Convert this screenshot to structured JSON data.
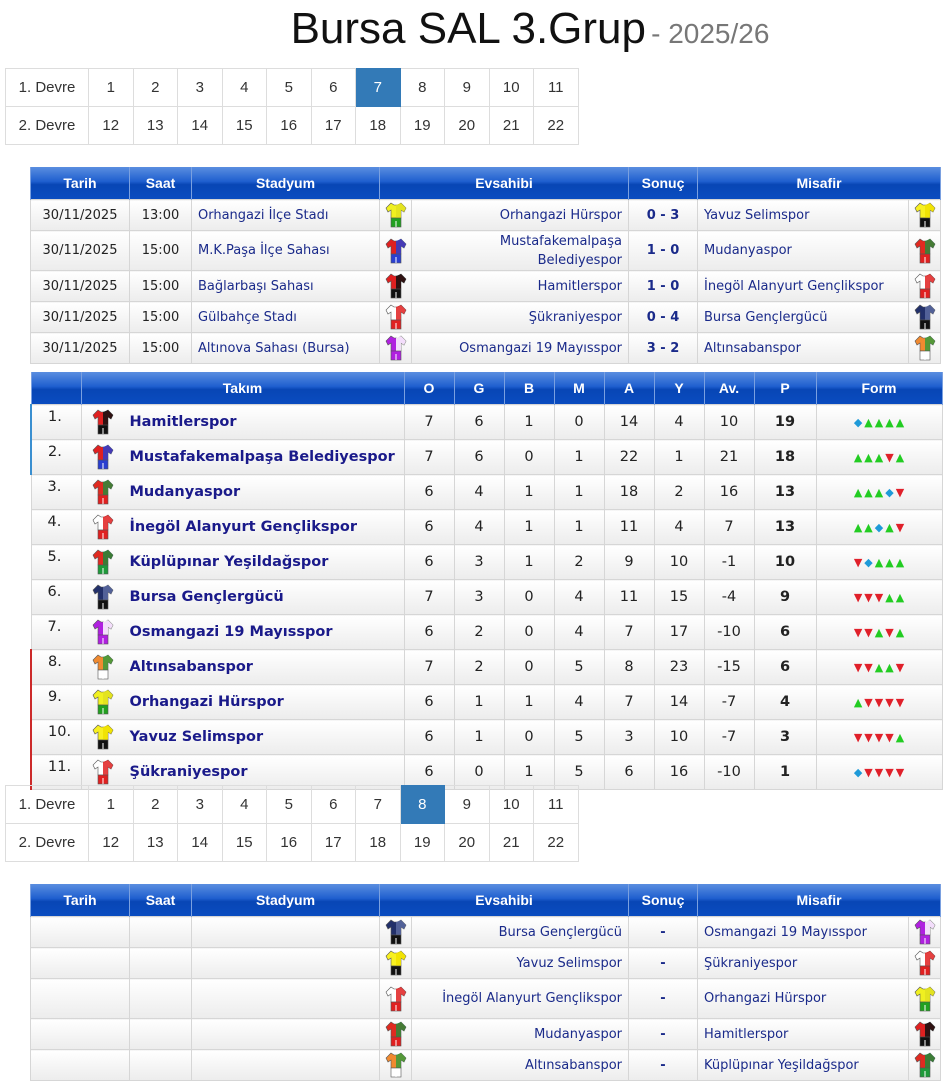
{
  "title": {
    "main": "Bursa SAL 3.Grup",
    "season": "- 2025/26"
  },
  "pager1": {
    "row1_label": "1. Devre",
    "row1": [
      "1",
      "2",
      "3",
      "4",
      "5",
      "6",
      "7",
      "8",
      "9",
      "10",
      "11"
    ],
    "row2_label": "2. Devre",
    "row2": [
      "12",
      "13",
      "14",
      "15",
      "16",
      "17",
      "18",
      "19",
      "20",
      "21",
      "22"
    ],
    "active": "7"
  },
  "pager2": {
    "row1_label": "1. Devre",
    "row1": [
      "1",
      "2",
      "3",
      "4",
      "5",
      "6",
      "7",
      "8",
      "9",
      "10",
      "11"
    ],
    "row2_label": "2. Devre",
    "row2": [
      "12",
      "13",
      "14",
      "15",
      "16",
      "17",
      "18",
      "19",
      "20",
      "21",
      "22"
    ],
    "active": "8"
  },
  "fixture_headers": [
    "Tarih",
    "Saat",
    "Stadyum",
    "Evsahibi",
    "Sonuç",
    "Misafir"
  ],
  "colors": {
    "accent": "#337ab7",
    "win": "#22cc22",
    "loss": "#e0202a",
    "draw": "#1e9ad8",
    "header": "#0a4cc0"
  },
  "kits": {
    "Hamitlerspor": [
      "#e02020",
      "#111111",
      "#111111"
    ],
    "Mustafakemalpaşa Belediyespor": [
      "#e02020",
      "#2a3fd0",
      "#2a3fd0"
    ],
    "Mudanyaspor": [
      "#e02a20",
      "#2a8a3a",
      "#e02020"
    ],
    "İnegöl Alanyurt Gençlikspor": [
      "#ffffff",
      "#e02020",
      "#e02020"
    ],
    "Küplüpınar Yeşildağspor": [
      "#e02a20",
      "#1e8a3a",
      "#1e9a3a"
    ],
    "Bursa Gençlergücü": [
      "#22306a",
      "#5a6aa0",
      "#111111"
    ],
    "Osmangazi 19 Mayısspor": [
      "#b020e0",
      "#ffffff",
      "#b020e0"
    ],
    "Altınsabanspor": [
      "#f08a30",
      "#3a9a3a",
      "#ffffff"
    ],
    "Orhangazi Hürspor": [
      "#f0f020",
      "#e0e020",
      "#22a020"
    ],
    "Yavuz Selimspor": [
      "#f8f020",
      "#f0e000",
      "#111111"
    ],
    "Şükraniyespor": [
      "#ffffff",
      "#e02020",
      "#e02020"
    ]
  },
  "round7": [
    {
      "date": "30/11/2025",
      "time": "13:00",
      "stadium": "Orhangazi İlçe Stadı",
      "home": "Orhangazi Hürspor",
      "score": "0 - 3",
      "away": "Yavuz Selimspor"
    },
    {
      "date": "30/11/2025",
      "time": "15:00",
      "stadium": "M.K.Paşa İlçe Sahası",
      "home": "Mustafakemalpaşa Belediyespor",
      "score": "1 - 0",
      "away": "Mudanyaspor"
    },
    {
      "date": "30/11/2025",
      "time": "15:00",
      "stadium": "Bağlarbaşı Sahası",
      "home": "Hamitlerspor",
      "score": "1 - 0",
      "away": "İnegöl Alanyurt Gençlikspor"
    },
    {
      "date": "30/11/2025",
      "time": "15:00",
      "stadium": "Gülbahçe Stadı",
      "home": "Şükraniyespor",
      "score": "0 - 4",
      "away": "Bursa Gençlergücü"
    },
    {
      "date": "30/11/2025",
      "time": "15:00",
      "stadium": "Altınova Sahası (Bursa)",
      "home": "Osmangazi 19 Mayısspor",
      "score": "3 - 2",
      "away": "Altınsabanspor"
    }
  ],
  "standings_headers": [
    "Takım",
    "O",
    "G",
    "B",
    "M",
    "A",
    "Y",
    "Av.",
    "P",
    "Form"
  ],
  "standings": [
    {
      "rank": "1.",
      "team": "Hamitlerspor",
      "o": "7",
      "g": "6",
      "b": "1",
      "m": "0",
      "a": "14",
      "y": "4",
      "av": "10",
      "p": "19",
      "form": "DWWWW",
      "zone": "up"
    },
    {
      "rank": "2.",
      "team": "Mustafakemalpaşa Belediyespor",
      "o": "7",
      "g": "6",
      "b": "0",
      "m": "1",
      "a": "22",
      "y": "1",
      "av": "21",
      "p": "18",
      "form": "WWWLW",
      "zone": "up"
    },
    {
      "rank": "3.",
      "team": "Mudanyaspor",
      "o": "6",
      "g": "4",
      "b": "1",
      "m": "1",
      "a": "18",
      "y": "2",
      "av": "16",
      "p": "13",
      "form": "WWWDL",
      "zone": ""
    },
    {
      "rank": "4.",
      "team": "İnegöl Alanyurt Gençlikspor",
      "o": "6",
      "g": "4",
      "b": "1",
      "m": "1",
      "a": "11",
      "y": "4",
      "av": "7",
      "p": "13",
      "form": "WWDWL",
      "zone": ""
    },
    {
      "rank": "5.",
      "team": "Küplüpınar Yeşildağspor",
      "o": "6",
      "g": "3",
      "b": "1",
      "m": "2",
      "a": "9",
      "y": "10",
      "av": "-1",
      "p": "10",
      "form": "LDWWW",
      "zone": ""
    },
    {
      "rank": "6.",
      "team": "Bursa Gençlergücü",
      "o": "7",
      "g": "3",
      "b": "0",
      "m": "4",
      "a": "11",
      "y": "15",
      "av": "-4",
      "p": "9",
      "form": "LLLWW",
      "zone": ""
    },
    {
      "rank": "7.",
      "team": "Osmangazi 19 Mayısspor",
      "o": "6",
      "g": "2",
      "b": "0",
      "m": "4",
      "a": "7",
      "y": "17",
      "av": "-10",
      "p": "6",
      "form": "LLWLW",
      "zone": ""
    },
    {
      "rank": "8.",
      "team": "Altınsabanspor",
      "o": "7",
      "g": "2",
      "b": "0",
      "m": "5",
      "a": "8",
      "y": "23",
      "av": "-15",
      "p": "6",
      "form": "LLWWL",
      "zone": "down"
    },
    {
      "rank": "9.",
      "team": "Orhangazi Hürspor",
      "o": "6",
      "g": "1",
      "b": "1",
      "m": "4",
      "a": "7",
      "y": "14",
      "av": "-7",
      "p": "4",
      "form": "WLLLL",
      "zone": "down"
    },
    {
      "rank": "10.",
      "team": "Yavuz Selimspor",
      "o": "6",
      "g": "1",
      "b": "0",
      "m": "5",
      "a": "3",
      "y": "10",
      "av": "-7",
      "p": "3",
      "form": "LLLLW",
      "zone": "down"
    },
    {
      "rank": "11.",
      "team": "Şükraniyespor",
      "o": "6",
      "g": "0",
      "b": "1",
      "m": "5",
      "a": "6",
      "y": "16",
      "av": "-10",
      "p": "1",
      "form": "DLLLL",
      "zone": "down"
    }
  ],
  "round8": [
    {
      "date": "",
      "time": "",
      "stadium": "",
      "home": "Bursa Gençlergücü",
      "score": "-",
      "away": "Osmangazi 19 Mayısspor"
    },
    {
      "date": "",
      "time": "",
      "stadium": "",
      "home": "Yavuz Selimspor",
      "score": "-",
      "away": "Şükraniyespor"
    },
    {
      "date": "",
      "time": "",
      "stadium": "",
      "home": "İnegöl Alanyurt Gençlikspor",
      "score": "-",
      "away": "Orhangazi Hürspor"
    },
    {
      "date": "",
      "time": "",
      "stadium": "",
      "home": "Mudanyaspor",
      "score": "-",
      "away": "Hamitlerspor"
    },
    {
      "date": "",
      "time": "",
      "stadium": "",
      "home": "Altınsabanspor",
      "score": "-",
      "away": "Küplüpınar Yeşildağspor"
    }
  ]
}
